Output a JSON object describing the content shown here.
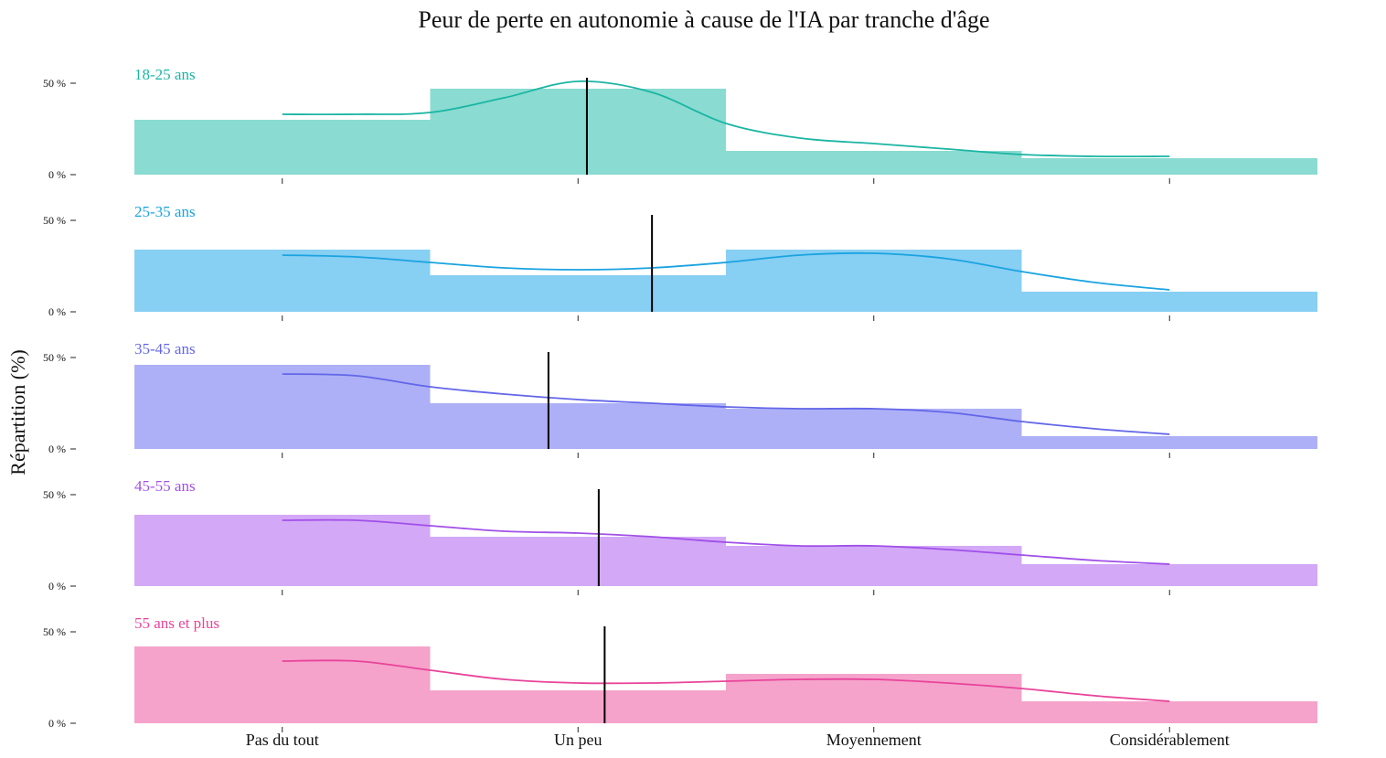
{
  "chart_data": {
    "type": "bar",
    "title": "Peur de perte en autonomie à cause de l'IA par tranche d'âge",
    "ylabel": "Répartition (%)",
    "xlabel": "",
    "categories": [
      "Pas du tout",
      "Un peu",
      "Moyennement",
      "Considérablement"
    ],
    "ytick_labels": [
      "0 %",
      "50 %"
    ],
    "ylim": [
      0,
      50
    ],
    "grid": false,
    "series": [
      {
        "name": "18-25 ans",
        "values": [
          30,
          47,
          13,
          9
        ],
        "density": [
          33,
          33,
          34,
          42,
          51,
          45,
          28,
          20,
          17,
          14,
          11,
          10,
          10
        ],
        "mean": 1.03,
        "fill": "#8adbd1",
        "line": "#1ab5a3"
      },
      {
        "name": "25-35 ans",
        "values": [
          34,
          20,
          34,
          11
        ],
        "density": [
          31,
          30,
          27,
          24,
          23,
          24,
          27,
          31,
          32,
          29,
          22,
          16,
          12
        ],
        "mean": 1.25,
        "fill": "#87cff3",
        "line": "#1aa3e0"
      },
      {
        "name": "35-45 ans",
        "values": [
          46,
          25,
          22,
          7
        ],
        "density": [
          41,
          40,
          34,
          30,
          27,
          25,
          23,
          22,
          22,
          20,
          15,
          11,
          8
        ],
        "mean": 0.9,
        "fill": "#adb0f6",
        "line": "#6366e8"
      },
      {
        "name": "45-55 ans",
        "values": [
          39,
          27,
          22,
          12
        ],
        "density": [
          36,
          36,
          33,
          30,
          29,
          27,
          24,
          22,
          22,
          20,
          17,
          14,
          12
        ],
        "mean": 1.07,
        "fill": "#d3a8f7",
        "line": "#a050e8"
      },
      {
        "name": "55 ans et plus",
        "values": [
          42,
          18,
          27,
          12
        ],
        "density": [
          34,
          34,
          29,
          24,
          22,
          22,
          23,
          24,
          24,
          22,
          19,
          15,
          12
        ],
        "mean": 1.09,
        "fill": "#f5a3cb",
        "line": "#e8449a"
      }
    ]
  }
}
